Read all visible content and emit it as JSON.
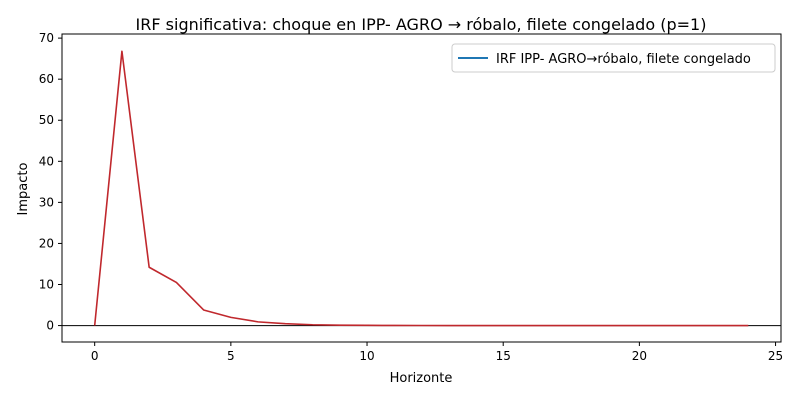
{
  "chart_data": {
    "type": "line",
    "title": "IRF significativa: choque en IPP- AGRO → róbalo, filete congelado (p=1)",
    "xlabel": "Horizonte",
    "ylabel": "Impacto",
    "xlim": [
      -1.2,
      25.2
    ],
    "ylim": [
      -4,
      71
    ],
    "xticks": [
      0,
      5,
      10,
      15,
      20,
      25
    ],
    "yticks": [
      0,
      10,
      20,
      30,
      40,
      50,
      60,
      70
    ],
    "grid": false,
    "legend_position": "top-right",
    "zero_line": true,
    "colors": {
      "legend_line": "#1f77b4",
      "series_line": "#c0282d",
      "zero_line": "#000000"
    },
    "series": [
      {
        "name": "IRF IPP- AGRO→róbalo, filete congelado",
        "x": [
          0,
          1,
          2,
          3,
          4,
          5,
          6,
          7,
          8,
          9,
          10,
          11,
          12,
          13,
          14,
          15,
          16,
          17,
          18,
          19,
          20,
          21,
          22,
          23,
          24
        ],
        "values": [
          0,
          66.8,
          14.2,
          10.5,
          3.8,
          2.0,
          0.9,
          0.45,
          0.2,
          0.1,
          0.06,
          0.03,
          0.02,
          0.01,
          0.01,
          0.0,
          0.0,
          0.0,
          0.0,
          0.0,
          0.0,
          0.0,
          0.0,
          0.0,
          0.0
        ]
      }
    ]
  }
}
